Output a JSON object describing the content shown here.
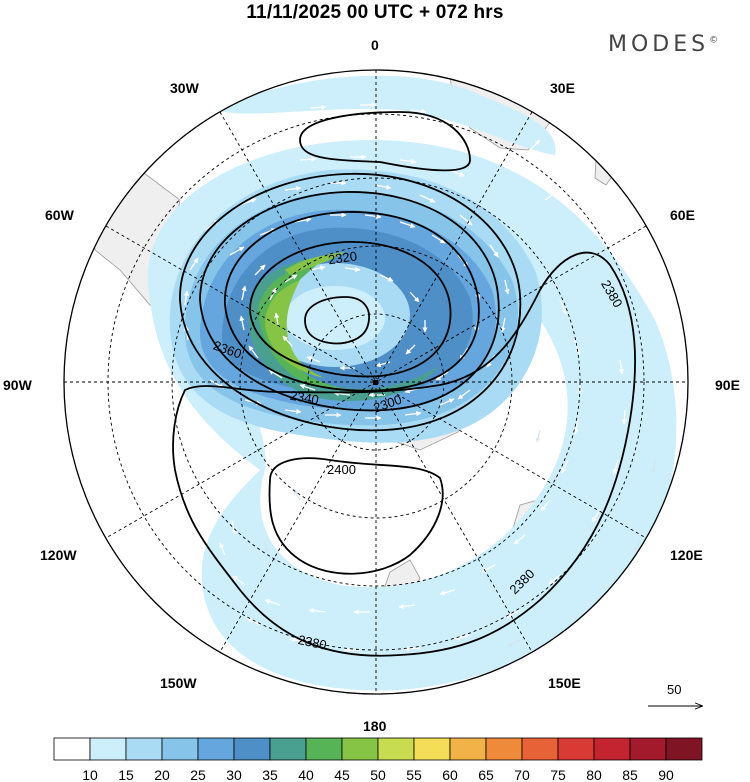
{
  "header": {
    "title": "11/11/2025  00 UTC  + 072 hrs",
    "logo": "MODES",
    "logo_mark": "©"
  },
  "map": {
    "projection": "south polar stereographic",
    "longitude_labels": {
      "top": "0",
      "top_right": "30E",
      "right_upper": "60E",
      "right": "90E",
      "right_lower": "120E",
      "bottom_right": "150E",
      "bottom": "180",
      "bottom_left": "150W",
      "left_lower": "120W",
      "left": "90W",
      "left_upper": "60W",
      "top_left": "30W"
    },
    "contour_labels": [
      "2320",
      "2360",
      "2340",
      "2300",
      "2380",
      "2400",
      "2380",
      "2380"
    ],
    "vector_reference": "50"
  },
  "colorbar": {
    "ticks": [
      "10",
      "15",
      "20",
      "25",
      "30",
      "35",
      "40",
      "45",
      "50",
      "55",
      "60",
      "65",
      "70",
      "75",
      "80",
      "85",
      "90"
    ],
    "colors": [
      "#ffffff",
      "#cdeefb",
      "#a9dcf4",
      "#86c4ea",
      "#64a6dd",
      "#4f8fc7",
      "#4aa090",
      "#57b456",
      "#86c445",
      "#c8dc52",
      "#f4de57",
      "#f1b247",
      "#ee8a3a",
      "#e86237",
      "#d93a33",
      "#c42430",
      "#a21a2b",
      "#7e1424"
    ]
  }
}
